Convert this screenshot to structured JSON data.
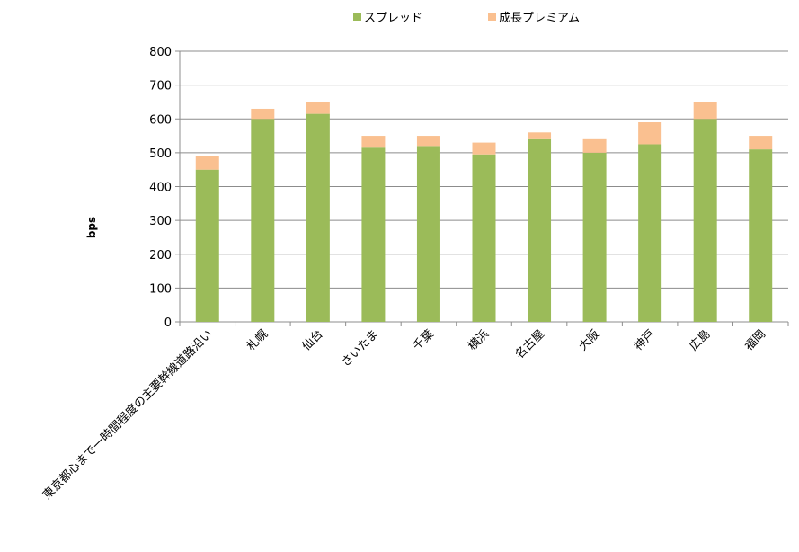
{
  "chart_data": {
    "type": "bar",
    "stacked": true,
    "title": "",
    "xlabel": "",
    "ylabel": "bps",
    "ylim": [
      0,
      800
    ],
    "yticks": [
      0,
      100,
      200,
      300,
      400,
      500,
      600,
      700,
      800
    ],
    "grid": true,
    "legend_position": "top",
    "categories": [
      "東京都心まで一時間程度の主要幹線道路沿い",
      "札幌",
      "仙台",
      "さいたま",
      "千葉",
      "横浜",
      "名古屋",
      "大阪",
      "神戸",
      "広島",
      "福岡"
    ],
    "series": [
      {
        "name": "スプレッド",
        "color": "#9bbb59",
        "values": [
          450,
          600,
          615,
          515,
          520,
          495,
          540,
          500,
          525,
          600,
          510
        ]
      },
      {
        "name": "成長プレミアム",
        "color": "#fac090",
        "values": [
          40,
          30,
          35,
          35,
          30,
          35,
          20,
          40,
          65,
          50,
          40
        ]
      }
    ]
  }
}
